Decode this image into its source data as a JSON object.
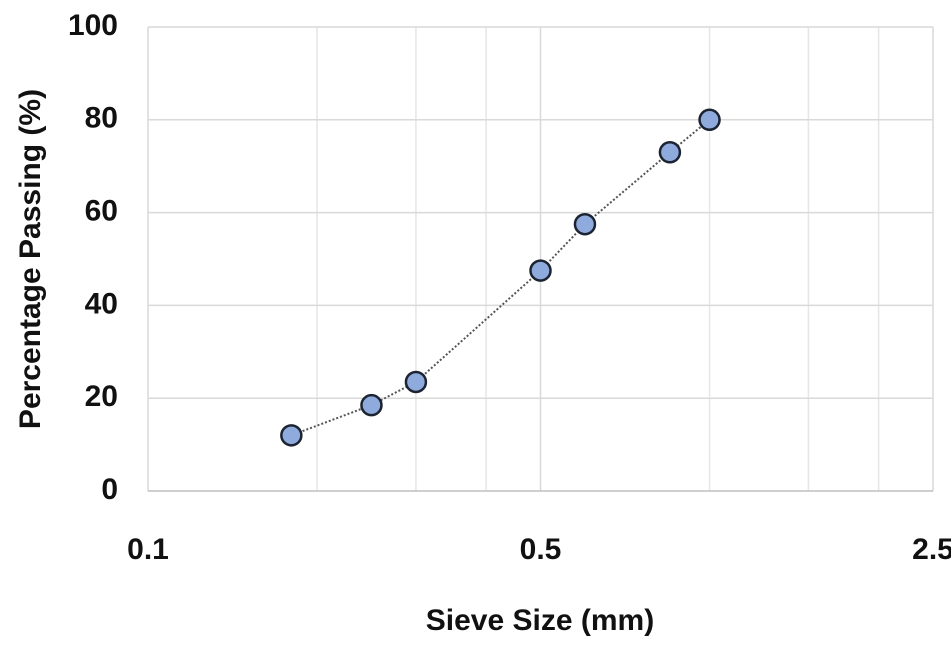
{
  "chart_data": {
    "type": "line",
    "x_label": "Sieve Size (mm)",
    "y_label": "Percentage Passing (%)",
    "xscale": "log",
    "xlim": [
      0.1,
      2.5
    ],
    "xticks": [
      0.1,
      0.5,
      2.5
    ],
    "xminorticks": [
      0.2,
      0.3,
      0.4,
      1,
      1.5,
      2
    ],
    "ylim": [
      0,
      100
    ],
    "yticks": [
      0,
      20,
      40,
      60,
      80,
      100
    ],
    "grid": true,
    "series": [
      {
        "color": "#8faadc",
        "line_color": "#555555",
        "x": [
          0.18,
          0.25,
          0.3,
          0.5,
          0.6,
          0.85,
          1.0
        ],
        "values": [
          12,
          18.5,
          23.5,
          47.5,
          57.5,
          73,
          80
        ]
      }
    ]
  }
}
